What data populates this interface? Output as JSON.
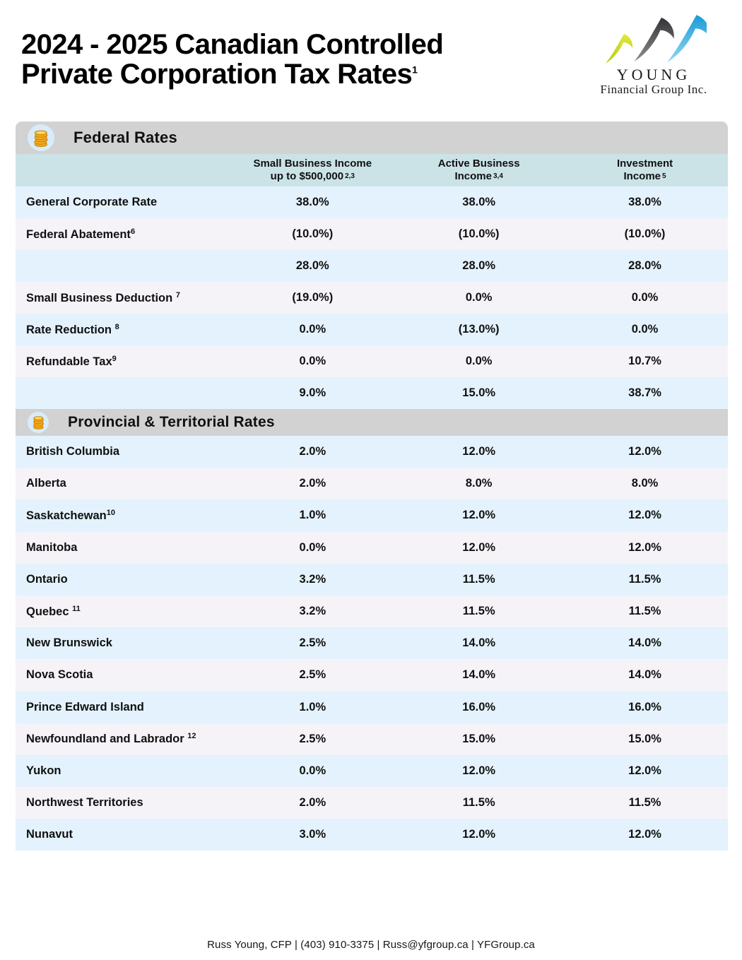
{
  "page": {
    "title_line1": "2024 - 2025 Canadian Controlled",
    "title_line2": "Private Corporation Tax Rates",
    "title_superscript": "1",
    "footer": "Russ Young, CFP | (403) 910-3375 | Russ@yfgroup.ca | YFGroup.ca"
  },
  "logo": {
    "name": "YOUNG",
    "subtitle": "Financial Group Inc.",
    "swoosh_colors": {
      "small": "#c9d32b",
      "medium": "#4a4b4d",
      "large": "#29abe2"
    }
  },
  "icons": {
    "section_icon": "coin-stack",
    "coin_color": "#f2a81d",
    "coin_edge_color": "#c97f06",
    "icon_circle_color": "#d7ecf8"
  },
  "colors": {
    "section_bar": "#d2d2d2",
    "column_header_bg": "#cbe3e7",
    "row_blue": "#e3f2fc",
    "row_lavender": "#f5f3f8",
    "text": "#101010"
  },
  "columns": [
    {
      "line1": "Small Business Income",
      "line2": "up to $500,000",
      "footnote": "2,3"
    },
    {
      "line1": "Active Business",
      "line2": "Income",
      "footnote": "3,4"
    },
    {
      "line1": "Investment",
      "line2": "Income",
      "footnote": "5"
    }
  ],
  "sections": [
    {
      "title": "Federal Rates",
      "rows": [
        {
          "label": "General Corporate Rate",
          "footnote": "",
          "values": [
            "38.0%",
            "38.0%",
            "38.0%"
          ]
        },
        {
          "label": "Federal Abatement",
          "footnote": "6",
          "values": [
            "(10.0%)",
            "(10.0%)",
            "(10.0%)"
          ]
        },
        {
          "label": "",
          "footnote": "",
          "values": [
            "28.0%",
            "28.0%",
            "28.0%"
          ]
        },
        {
          "label": "Small Business Deduction ",
          "footnote": "7",
          "values": [
            "(19.0%)",
            "0.0%",
            "0.0%"
          ]
        },
        {
          "label": "Rate Reduction ",
          "footnote": "8",
          "values": [
            "0.0%",
            "(13.0%)",
            "0.0%"
          ]
        },
        {
          "label": "Refundable Tax",
          "footnote": "9",
          "values": [
            "0.0%",
            "0.0%",
            "10.7%"
          ]
        },
        {
          "label": "",
          "footnote": "",
          "values": [
            "9.0%",
            "15.0%",
            "38.7%"
          ]
        }
      ]
    },
    {
      "title": "Provincial & Territorial Rates",
      "rows": [
        {
          "label": "British Columbia",
          "footnote": "",
          "values": [
            "2.0%",
            "12.0%",
            "12.0%"
          ]
        },
        {
          "label": "Alberta",
          "footnote": "",
          "values": [
            "2.0%",
            "8.0%",
            "8.0%"
          ]
        },
        {
          "label": "Saskatchewan",
          "footnote": "10",
          "values": [
            "1.0%",
            "12.0%",
            "12.0%"
          ]
        },
        {
          "label": "Manitoba",
          "footnote": "",
          "values": [
            "0.0%",
            "12.0%",
            "12.0%"
          ]
        },
        {
          "label": "Ontario",
          "footnote": "",
          "values": [
            "3.2%",
            "11.5%",
            "11.5%"
          ]
        },
        {
          "label": "Quebec ",
          "footnote": "11",
          "values": [
            "3.2%",
            "11.5%",
            "11.5%"
          ]
        },
        {
          "label": "New Brunswick",
          "footnote": "",
          "values": [
            "2.5%",
            "14.0%",
            "14.0%"
          ]
        },
        {
          "label": "Nova Scotia",
          "footnote": "",
          "values": [
            "2.5%",
            "14.0%",
            "14.0%"
          ]
        },
        {
          "label": "Prince Edward Island",
          "footnote": "",
          "values": [
            "1.0%",
            "16.0%",
            "16.0%"
          ]
        },
        {
          "label": "Newfoundland and Labrador ",
          "footnote": "12",
          "values": [
            "2.5%",
            "15.0%",
            "15.0%"
          ]
        },
        {
          "label": "Yukon",
          "footnote": "",
          "values": [
            "0.0%",
            "12.0%",
            "12.0%"
          ]
        },
        {
          "label": "Northwest Territories",
          "footnote": "",
          "values": [
            "2.0%",
            "11.5%",
            "11.5%"
          ]
        },
        {
          "label": "Nunavut",
          "footnote": "",
          "values": [
            "3.0%",
            "12.0%",
            "12.0%"
          ]
        }
      ]
    }
  ]
}
